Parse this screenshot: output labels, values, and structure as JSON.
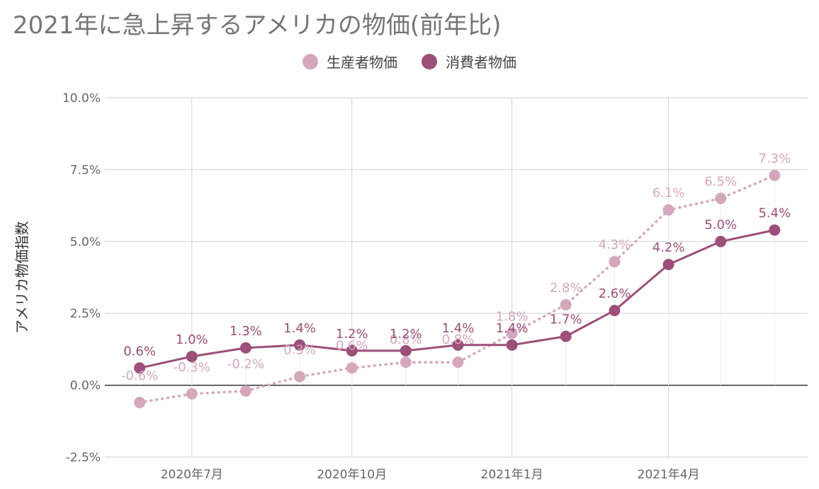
{
  "chart_data": {
    "type": "line",
    "title": "2021年に急上昇するアメリカの物価(前年比)",
    "ylabel": "アメリカ物価指数",
    "xlabel": "",
    "ylim": [
      -2.5,
      10.0
    ],
    "yticks": [
      -2.5,
      0.0,
      2.5,
      5.0,
      7.5,
      10.0
    ],
    "ytick_labels": [
      "-2.5%",
      "0.0%",
      "2.5%",
      "5.0%",
      "7.5%",
      "10.0%"
    ],
    "xlim": [
      "2020-05-12",
      "2021-06-20"
    ],
    "x": [
      "2020-06-01",
      "2020-07-01",
      "2020-08-01",
      "2020-09-01",
      "2020-10-01",
      "2020-11-01",
      "2020-12-01",
      "2021-01-01",
      "2021-02-01",
      "2021-03-01",
      "2021-04-01",
      "2021-05-01",
      "2021-06-01"
    ],
    "xticks": [
      "2020-07-01",
      "2020-10-01",
      "2021-01-01",
      "2021-04-01"
    ],
    "xtick_labels": [
      "2020年7月",
      "2020年10月",
      "2021年1月",
      "2021年4月"
    ],
    "grid": true,
    "legend_position": "top",
    "series": [
      {
        "name": "生産者物価",
        "color": "#d4a7bc",
        "style": "dotted",
        "values": [
          -0.6,
          -0.3,
          -0.2,
          0.3,
          0.6,
          0.8,
          0.8,
          1.8,
          2.8,
          4.3,
          6.1,
          6.5,
          7.3
        ],
        "labels": [
          "-0.6%",
          "-0.3%",
          "-0.2%",
          "0.3%",
          "0.6%",
          "0.8%",
          "0.8%",
          "1.8%",
          "2.8%",
          "4.3%",
          "6.1%",
          "6.5%",
          "7.3%"
        ]
      },
      {
        "name": "消費者物価",
        "color": "#9c4f78",
        "style": "solid",
        "values": [
          0.6,
          1.0,
          1.3,
          1.4,
          1.2,
          1.2,
          1.4,
          1.4,
          1.7,
          2.6,
          4.2,
          5.0,
          5.4
        ],
        "labels": [
          "0.6%",
          "1.0%",
          "1.3%",
          "1.4%",
          "1.2%",
          "1.2%",
          "1.4%",
          "1.4%",
          "1.7%",
          "2.6%",
          "4.2%",
          "5.0%",
          "5.4%"
        ]
      }
    ]
  }
}
